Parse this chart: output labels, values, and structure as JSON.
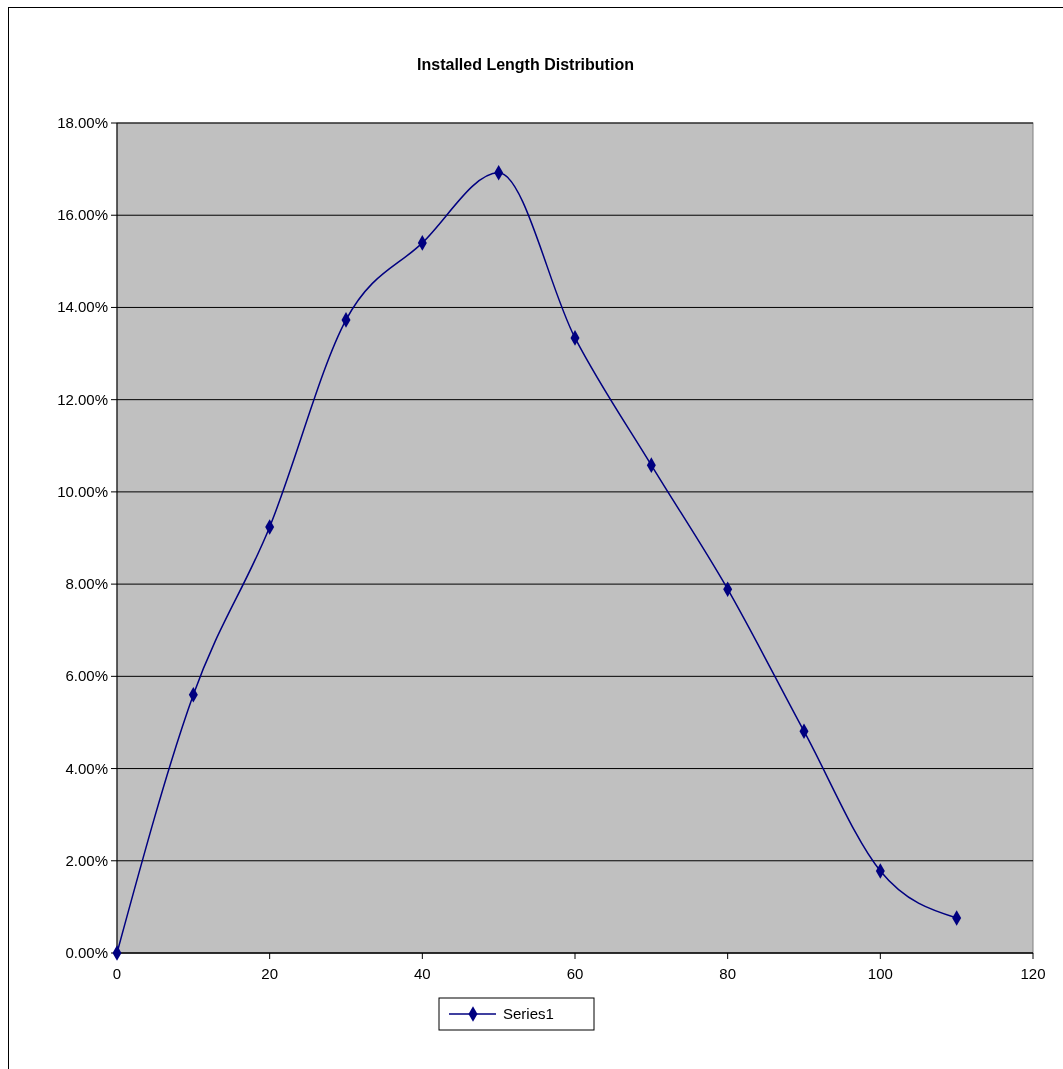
{
  "chart_data": {
    "type": "line",
    "title": "Installed Length Distribution",
    "x": [
      0,
      10,
      20,
      30,
      40,
      50,
      60,
      70,
      80,
      90,
      100,
      110
    ],
    "series": [
      {
        "name": "Series1",
        "color": "#000080",
        "values": [
          0,
          5.6,
          9.24,
          13.73,
          15.4,
          16.92,
          13.34,
          10.58,
          7.89,
          4.81,
          1.78,
          0.76
        ]
      }
    ],
    "xlim": [
      0,
      120
    ],
    "xticks": [
      0,
      20,
      40,
      60,
      80,
      100,
      120
    ],
    "ylim": [
      0,
      18
    ],
    "yticks": [
      {
        "value": 0,
        "label": "0.00%"
      },
      {
        "value": 2,
        "label": "2.00%"
      },
      {
        "value": 4,
        "label": "4.00%"
      },
      {
        "value": 6,
        "label": "6.00%"
      },
      {
        "value": 8,
        "label": "8.00%"
      },
      {
        "value": 10,
        "label": "10.00%"
      },
      {
        "value": 12,
        "label": "12.00%"
      },
      {
        "value": 14,
        "label": "14.00%"
      },
      {
        "value": 16,
        "label": "16.00%"
      },
      {
        "value": 18,
        "label": "18.00%"
      }
    ],
    "grid": "y",
    "legend": "bottom",
    "marker": "diamond",
    "line_style": "solid"
  }
}
